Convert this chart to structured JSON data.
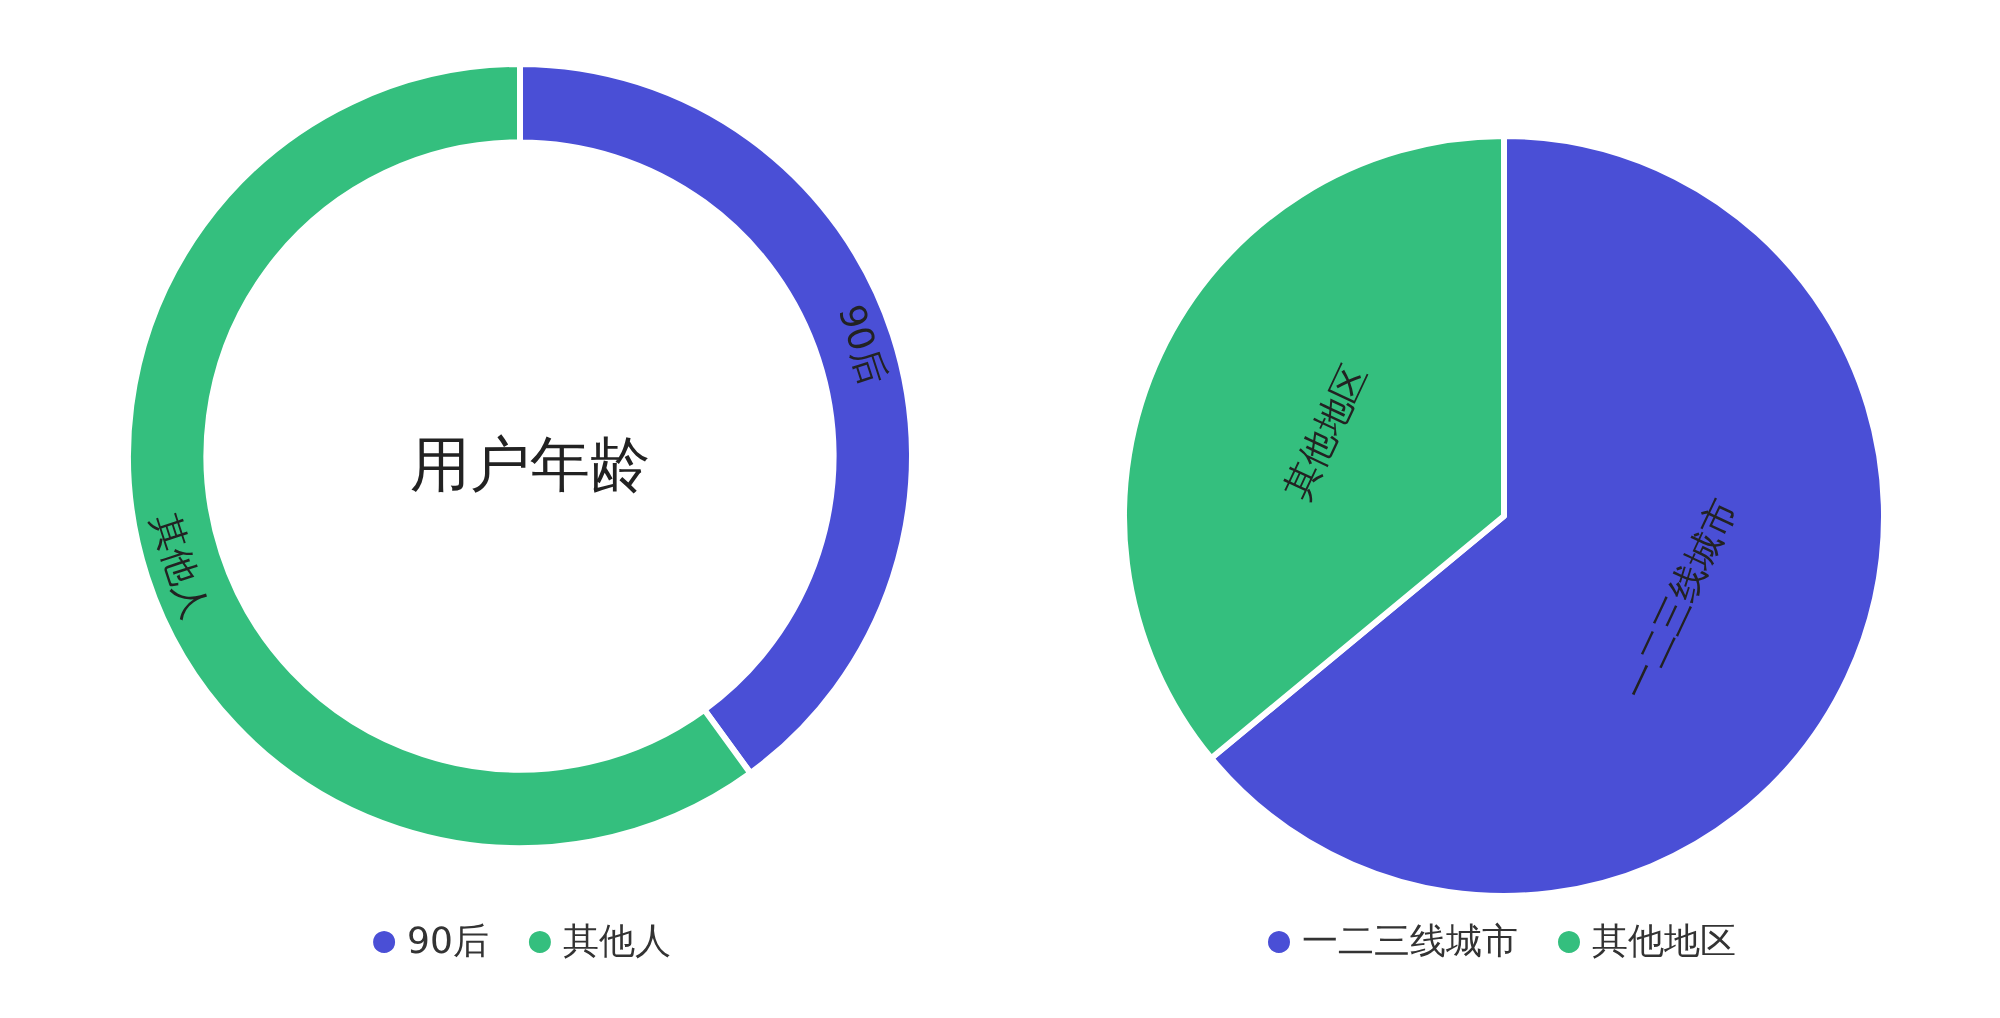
{
  "chart_data": [
    {
      "type": "donut",
      "title": "用户年龄",
      "categories": [
        "90后",
        "其他人"
      ],
      "values": [
        40,
        60
      ],
      "colors": [
        "#4a4fd6",
        "#34bf7e"
      ],
      "legend": "bottom"
    },
    {
      "type": "pie",
      "categories": [
        "一二三线城市",
        "其他地区"
      ],
      "values": [
        64,
        36
      ],
      "colors": [
        "#4a4fd6",
        "#34bf7e"
      ],
      "legend": "bottom"
    }
  ]
}
